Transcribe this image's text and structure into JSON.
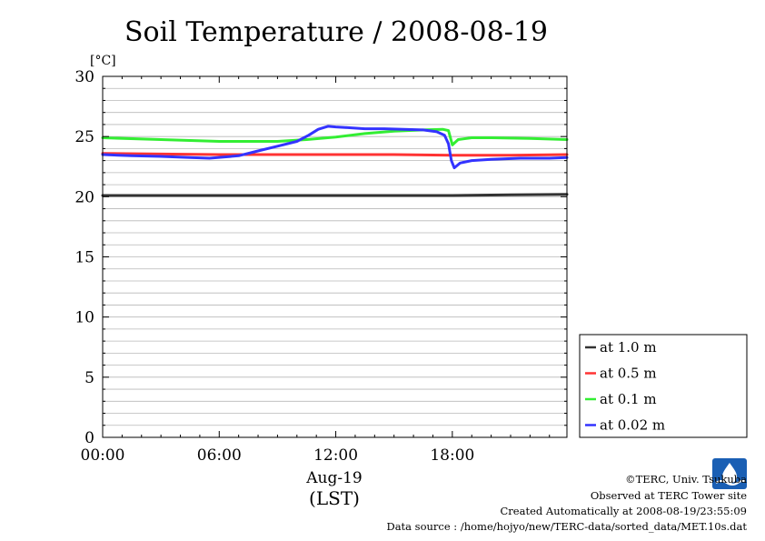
{
  "chart_data": {
    "type": "line",
    "title": "Soil Temperature / 2008-08-19",
    "ylabel": "[°C]",
    "ylim": [
      0,
      30
    ],
    "yticks": [
      "0",
      "5",
      "10",
      "15",
      "20",
      "25",
      "30"
    ],
    "xlim": [
      0,
      23.9
    ],
    "xticks": [
      {
        "hour": 0,
        "label": "00:00"
      },
      {
        "hour": 6,
        "label": "06:00"
      },
      {
        "hour": 12,
        "label": "12:00"
      },
      {
        "hour": 18,
        "label": "18:00"
      }
    ],
    "xdate_label": "Aug-19",
    "xunit_label": "(LST)",
    "grid": true,
    "legend_position": "right",
    "series": [
      {
        "name": "at 1.0 m",
        "color": "#333333",
        "x": [
          0,
          3,
          6,
          9,
          12,
          15,
          18,
          21,
          23.9
        ],
        "y": [
          20.1,
          20.1,
          20.1,
          20.1,
          20.1,
          20.1,
          20.1,
          20.15,
          20.2
        ]
      },
      {
        "name": "at 0.5 m",
        "color": "#ff3333",
        "x": [
          0,
          3,
          6,
          9,
          12,
          15,
          18,
          21,
          23.9
        ],
        "y": [
          23.6,
          23.55,
          23.5,
          23.5,
          23.5,
          23.5,
          23.45,
          23.45,
          23.5
        ]
      },
      {
        "name": "at 0.1 m",
        "color": "#33ee33",
        "x": [
          0,
          3,
          6,
          9,
          10.5,
          12,
          13.5,
          15,
          16.5,
          17.5,
          17.8,
          18.0,
          18.3,
          19,
          20,
          22,
          23.9
        ],
        "y": [
          24.9,
          24.75,
          24.6,
          24.6,
          24.75,
          24.95,
          25.25,
          25.45,
          25.55,
          25.6,
          25.5,
          24.3,
          24.75,
          24.9,
          24.9,
          24.85,
          24.75
        ]
      },
      {
        "name": "at 0.02 m",
        "color": "#3333ff",
        "x": [
          0,
          1.5,
          3,
          4.5,
          5.5,
          7,
          8,
          9,
          10,
          10.6,
          11.1,
          11.6,
          12,
          12.5,
          13.5,
          14.5,
          15.5,
          16.5,
          17.2,
          17.6,
          17.8,
          17.95,
          18.1,
          18.4,
          19,
          20,
          21.5,
          23,
          23.9
        ],
        "y": [
          23.5,
          23.4,
          23.35,
          23.25,
          23.2,
          23.4,
          23.8,
          24.2,
          24.6,
          25.1,
          25.6,
          25.85,
          25.8,
          25.75,
          25.65,
          25.65,
          25.6,
          25.55,
          25.4,
          25.1,
          24.4,
          23.0,
          22.4,
          22.8,
          23.0,
          23.1,
          23.2,
          23.2,
          23.25
        ]
      }
    ]
  },
  "footer": {
    "copyright": "©TERC, Univ. Tsukuba",
    "observed": "Observed at TERC Tower site",
    "created": "Created Automatically at 2008-08-19/23:55:09",
    "source": "Data source : /home/hojyo/new/TERC-data/sorted_data/MET.10s.dat"
  },
  "logo": {
    "text": "TERC",
    "color": "#1a5fb4"
  }
}
